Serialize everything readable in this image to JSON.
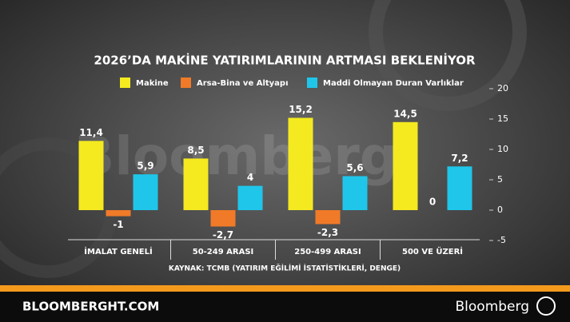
{
  "chart_data": {
    "type": "bar",
    "title": "2026’DA MAKİNE YATIRIMLARININ ARTMASI BEKLENİYOR",
    "source": "KAYNAK: TCMB (YATIRIM EĞİLİMİ İSTATİSTİKLERİ, DENGE)",
    "categories": [
      "İMALAT GENELİ",
      "50-249 ARASI",
      "250-499 ARASI",
      "500 VE ÜZERİ"
    ],
    "series": [
      {
        "name": "Makine",
        "color": "#f4ea1f",
        "values": [
          11.4,
          8.5,
          15.2,
          14.5
        ],
        "value_labels": [
          "11,4",
          "8,5",
          "15,2",
          "14,5"
        ]
      },
      {
        "name": "Arsa-Bina ve Altyapı",
        "color": "#f07a28",
        "values": [
          -1,
          -2.7,
          -2.3,
          0
        ],
        "value_labels": [
          "-1",
          "-2,7",
          "-2,3",
          "0"
        ]
      },
      {
        "name": "Maddi Olmayan Duran Varlıklar",
        "color": "#1fc6ea",
        "values": [
          5.9,
          4,
          5.6,
          7.2
        ],
        "value_labels": [
          "5,9",
          "4",
          "5,6",
          "7,2"
        ]
      }
    ],
    "ylim": [
      -5,
      20
    ],
    "yticks": [
      -5,
      0,
      5,
      10,
      15,
      20
    ],
    "watermark": "Bloomberg"
  },
  "footer": {
    "site": "BLOOMBERGHT.COM",
    "brand": "Bloomberg"
  }
}
